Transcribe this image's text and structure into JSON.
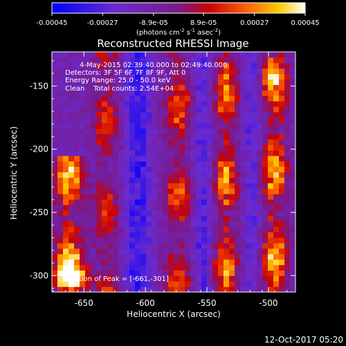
{
  "colorbar": {
    "ticks": [
      "-0.00045",
      "-0.00027",
      "-8.9e-05",
      "8.9e-05",
      "0.00027",
      "0.00045"
    ],
    "units_main": "(photons cm",
    "units_exp1": "-2",
    "units_mid1": " s",
    "units_exp2": "-1",
    "units_mid2": " asec",
    "units_exp3": "-2",
    "units_end": ")"
  },
  "chart_data": {
    "type": "heatmap",
    "title": "Reconstructed RHESSI Image",
    "xlabel": "Heliocentric X (arcsec)",
    "ylabel": "Heliocentric Y (arcsec)",
    "xlim": [
      -676,
      -478
    ],
    "ylim": [
      -313,
      -123
    ],
    "x_ticks": [
      -650,
      -600,
      -550,
      -500
    ],
    "y_ticks": [
      -300,
      -250,
      -200,
      -150
    ],
    "x_tick_labels": [
      "-650",
      "-600",
      "-550",
      "-500"
    ],
    "y_tick_labels": [
      "-300",
      "-250",
      "-200",
      "-150"
    ],
    "color_range": [
      -0.00045,
      0.00045
    ],
    "colormap": "blue-purple-red-orange-yellow-white",
    "annotations": [
      "4-May-2015 02:39:40.000 to 02:49:40.000",
      "Detectors: 3F 5F 6F 7F 8F 9F, Att 0",
      "Energy Range: 25.0 - 50.0 keV",
      "Clean    Total counts: 2.54E+04"
    ],
    "peak_label": "Position of Peak = [-661,-301]",
    "peak": [
      -661,
      -301
    ],
    "bright_bands": [
      {
        "x_center": -662,
        "width": 16,
        "y_from": -313,
        "y_to": -205,
        "level": 0.0004
      },
      {
        "x_center": -632,
        "width": 16,
        "y_from": -313,
        "y_to": -123,
        "level": 0.00022
      },
      {
        "x_center": -573,
        "width": 17,
        "y_from": -313,
        "y_to": -123,
        "level": 0.00025
      },
      {
        "x_center": -535,
        "width": 15,
        "y_from": -313,
        "y_to": -123,
        "level": 0.00032
      },
      {
        "x_center": -495,
        "width": 16,
        "y_from": -313,
        "y_to": -123,
        "level": 0.00035
      }
    ],
    "dark_bands": [
      {
        "x_center": -606,
        "width": 16,
        "level": -0.00022
      },
      {
        "x_center": -553,
        "width": 12,
        "level": -0.00018
      },
      {
        "x_center": -513,
        "width": 10,
        "level": -0.00015
      }
    ]
  },
  "footer": {
    "timestamp": "12-Oct-2017 05:20"
  }
}
